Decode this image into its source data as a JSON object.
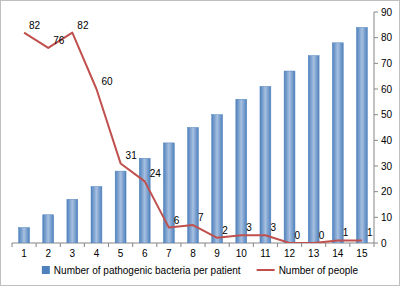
{
  "chart_data": {
    "type": "bar",
    "categories": [
      "1",
      "2",
      "3",
      "4",
      "5",
      "6",
      "7",
      "8",
      "9",
      "10",
      "11",
      "12",
      "13",
      "14",
      "15"
    ],
    "series": [
      {
        "name": "Number of pathogenic bacteria per patient",
        "type": "bar",
        "color": "#4f81bd",
        "values": [
          6,
          11,
          17,
          22,
          28,
          33,
          39,
          45,
          50,
          56,
          61,
          67,
          73,
          78,
          84
        ]
      },
      {
        "name": "Number of people",
        "type": "line",
        "color": "#c0504d",
        "data_labels": true,
        "values": [
          82,
          76,
          82,
          60,
          31,
          24,
          6,
          7,
          2,
          3,
          3,
          0,
          0,
          1,
          1
        ]
      }
    ],
    "ylim": [
      0,
      90
    ],
    "yticks": [
      0,
      10,
      20,
      30,
      40,
      50,
      60,
      70,
      80,
      90
    ],
    "grid": false,
    "legend": "bottom"
  }
}
